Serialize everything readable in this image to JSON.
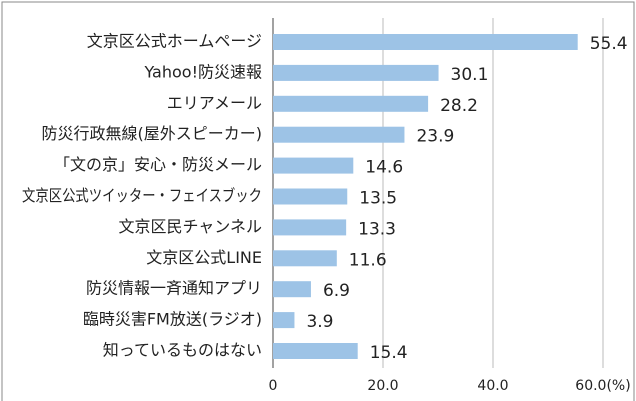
{
  "chart_data": {
    "type": "bar",
    "orientation": "horizontal",
    "categories": [
      "文京区公式ホームページ",
      "Yahoo!防災速報",
      "エリアメール",
      "防災行政無線(屋外スピーカー)",
      "「文の京」安心・防災メール",
      "文京区公式ツイッター・フェイスブック",
      "文京区民チャンネル",
      "文京区公式LINE",
      "防災情報一斉通知アプリ",
      "臨時災害FM放送(ラジオ)",
      "知っているものはない"
    ],
    "values": [
      55.4,
      30.1,
      28.2,
      23.9,
      14.6,
      13.5,
      13.3,
      11.6,
      6.9,
      3.9,
      15.4
    ],
    "color": "#9dc3e6",
    "xlim": [
      0,
      60
    ],
    "xticks": [
      0,
      {
        "value": 20,
        "label": "20.0"
      },
      {
        "value": 40,
        "label": "40.0"
      },
      {
        "value": 60,
        "label": "60.0(%)"
      }
    ],
    "grid": true
  }
}
